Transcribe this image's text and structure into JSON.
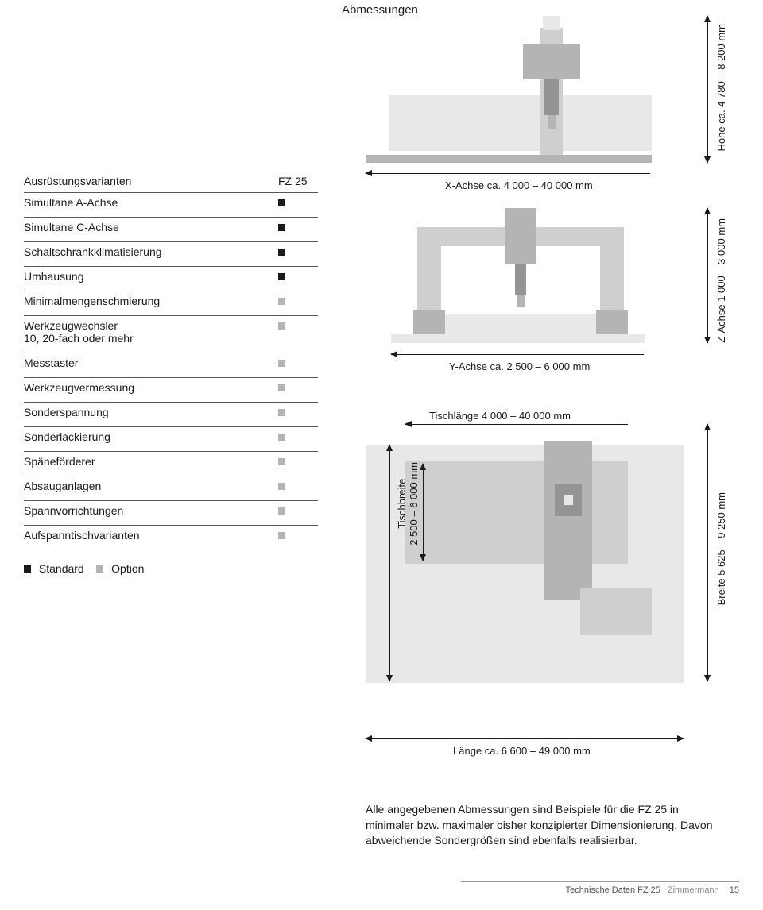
{
  "title": "Abmessungen",
  "table": {
    "heading_variant": "Ausrüstungsvarianten",
    "heading_model": "FZ 25",
    "rows": [
      {
        "label": "Simultane A-Achse",
        "std": true
      },
      {
        "label": "Simultane C-Achse",
        "std": true
      },
      {
        "label": "Schaltschrankklimatisierung",
        "std": true
      },
      {
        "label": "Umhausung",
        "std": true
      },
      {
        "label": "Minimalmengenschmierung",
        "std": false
      },
      {
        "label": "Werkzeugwechsler\n10, 20-fach oder mehr",
        "std": false
      },
      {
        "label": "Messtaster",
        "std": false
      },
      {
        "label": "Werkzeugvermessung",
        "std": false
      },
      {
        "label": "Sonderspannung",
        "std": false
      },
      {
        "label": "Sonderlackierung",
        "std": false
      },
      {
        "label": "Späneförderer",
        "std": false
      },
      {
        "label": "Absauganlagen",
        "std": false
      },
      {
        "label": "Spannvorrichtungen",
        "std": false
      },
      {
        "label": "Aufspanntischvarianten",
        "std": false
      }
    ],
    "legend_standard": "Standard",
    "legend_option": "Option"
  },
  "colors": {
    "std": "#1a1a1a",
    "opt": "#b4b4b4",
    "light": "#e8e8e8",
    "mid": "#cfcfcf",
    "dark": "#b4b4b4",
    "darker": "#949494",
    "line": "#1a1a1a"
  },
  "diagrams": {
    "x_axis_label": "X-Achse ca. 4 000 – 40 000 mm",
    "height_label": "Höhe ca. 4 780 – 8 200 mm",
    "y_axis_label": "Y-Achse ca. 2 500 – 6 000 mm",
    "z_axis_label": "Z-Achse 1 000 – 3 000 mm",
    "table_len_label": "Tischlänge 4 000 – 40 000 mm",
    "table_wid_label": "Tischbreite\n2 500 – 6 000 mm",
    "width_label": "Breite 5 625 – 9 250 mm",
    "length_label": "Länge ca. 6 600 – 49 000 mm"
  },
  "footer_note": "Alle angegebenen Abmessungen sind Beispiele für die FZ 25 in minimaler bzw. maximaler bisher konzipierter Dimensionierung. Davon abweichende Sondergrößen sind ebenfalls realisierbar.",
  "footer_bar": {
    "section": "Technische Daten FZ 25",
    "brand": "Zimmermann",
    "page": "15"
  }
}
